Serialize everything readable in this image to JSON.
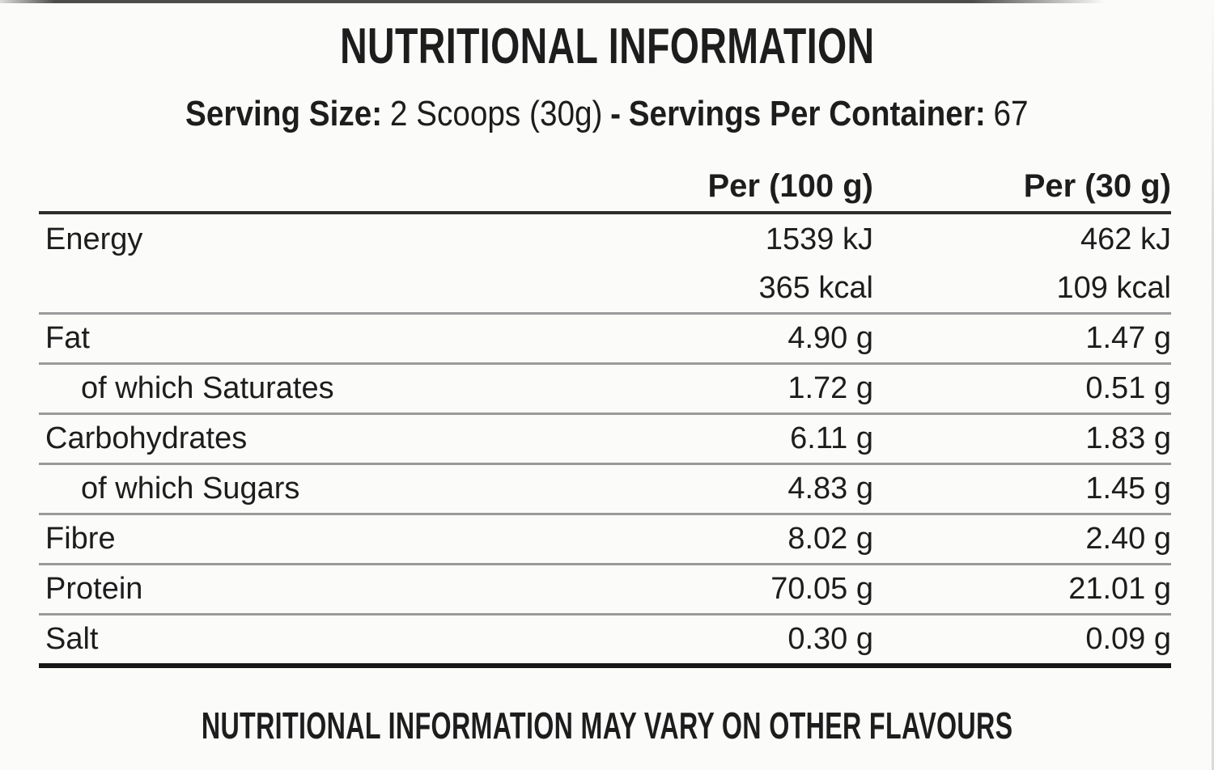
{
  "page": {
    "title": "NUTRITIONAL INFORMATION",
    "footer_note": "NUTRITIONAL INFORMATION MAY VARY ON OTHER FLAVOURS"
  },
  "serving": {
    "size_label": "Serving Size:",
    "size_value": "2 Scoops (30g)",
    "separator": "-",
    "per_container_label": "Servings Per Container:",
    "per_container_value": "67"
  },
  "table": {
    "columns": [
      "Per (100 g)",
      "Per (30 g)"
    ],
    "rows": [
      {
        "label": "Energy",
        "indent": false,
        "per_100g": "1539 kJ",
        "per_30g": "462 kJ",
        "divider": "none"
      },
      {
        "label": "",
        "indent": false,
        "per_100g": "365 kcal",
        "per_30g": "109 kcal",
        "divider": "thin"
      },
      {
        "label": "Fat",
        "indent": false,
        "per_100g": "4.90 g",
        "per_30g": "1.47 g",
        "divider": "thin"
      },
      {
        "label": "of which Saturates",
        "indent": true,
        "per_100g": "1.72 g",
        "per_30g": "0.51 g",
        "divider": "thin"
      },
      {
        "label": "Carbohydrates",
        "indent": false,
        "per_100g": "6.11 g",
        "per_30g": "1.83 g",
        "divider": "thin"
      },
      {
        "label": "of which Sugars",
        "indent": true,
        "per_100g": "4.83 g",
        "per_30g": "1.45 g",
        "divider": "thin"
      },
      {
        "label": "Fibre",
        "indent": false,
        "per_100g": "8.02 g",
        "per_30g": "2.40 g",
        "divider": "thin"
      },
      {
        "label": "Protein",
        "indent": false,
        "per_100g": "70.05 g",
        "per_30g": "21.01 g",
        "divider": "thin"
      },
      {
        "label": "Salt",
        "indent": false,
        "per_100g": "0.30 g",
        "per_30g": "0.09 g",
        "divider": "thick"
      }
    ]
  },
  "colors": {
    "text": "#1d1d1d",
    "background": "#fbfbfa",
    "thin_rule": "#9a9a9a",
    "header_rule": "#2d2d2d",
    "thick_rule": "#171717"
  }
}
